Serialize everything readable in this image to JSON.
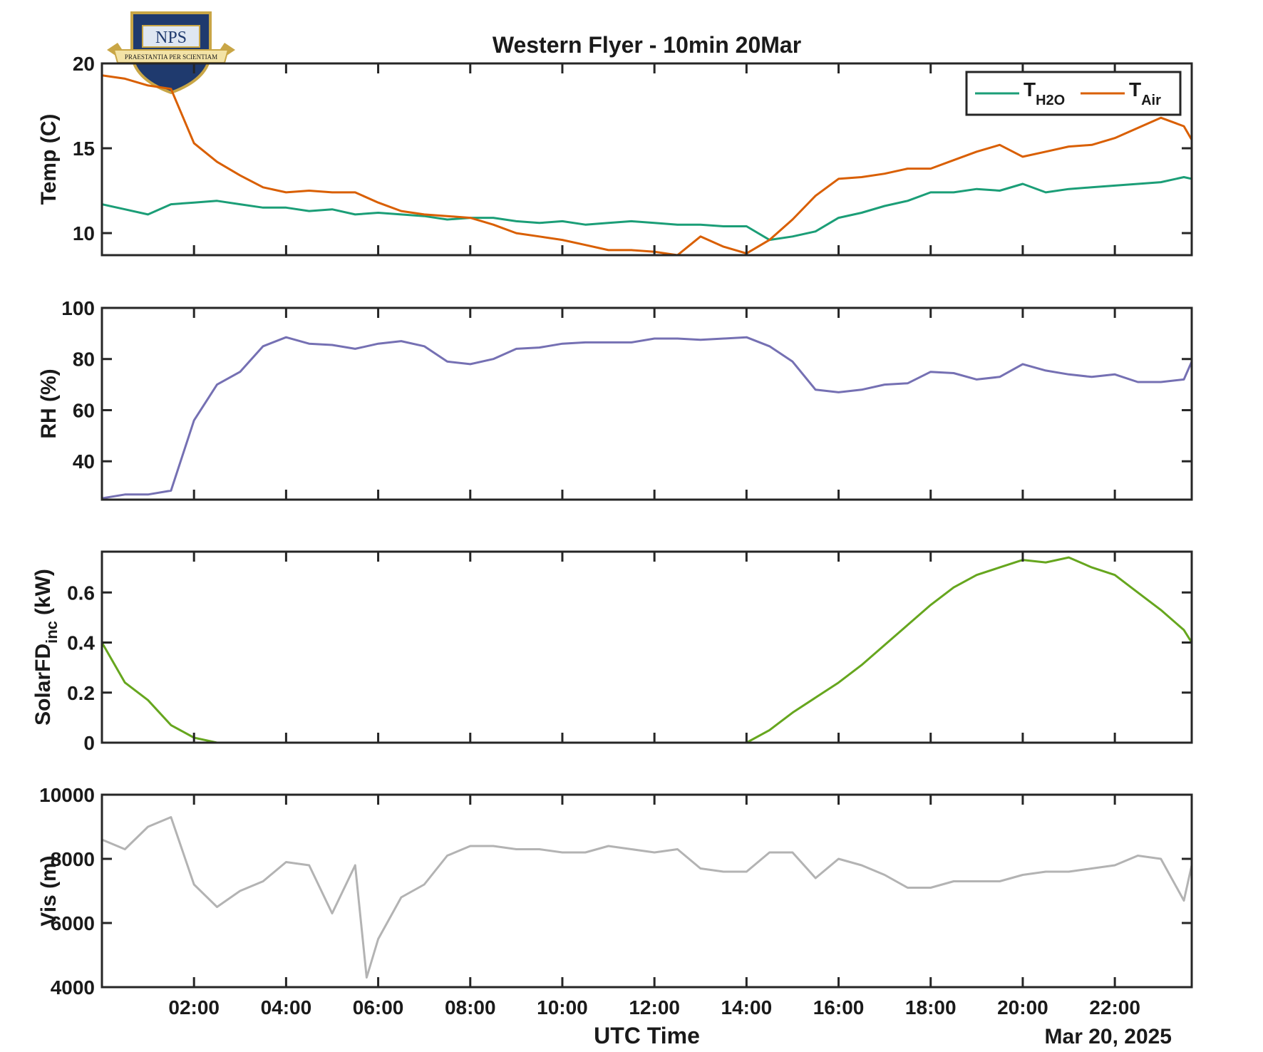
{
  "logo": {
    "text": "NPS",
    "motto": "PRAESTANTIA PER SCIENTIAM"
  },
  "chart_data": [
    {
      "type": "line",
      "title": "Western Flyer - 10min 20Mar",
      "ylabel": "Temp (C)",
      "x": [
        0,
        0.5,
        1,
        1.5,
        2,
        2.5,
        3,
        3.5,
        4,
        4.5,
        5,
        5.5,
        6,
        6.5,
        7,
        7.5,
        8,
        8.5,
        9,
        9.5,
        10,
        10.5,
        11,
        11.5,
        12,
        12.5,
        13,
        13.5,
        14,
        14.5,
        15,
        15.5,
        16,
        16.5,
        17,
        17.5,
        18,
        18.5,
        19,
        19.5,
        20,
        20.5,
        21,
        21.5,
        22,
        22.5,
        23,
        23.5,
        23.67
      ],
      "xlim": [
        0,
        23.67
      ],
      "xticks": [
        2,
        4,
        6,
        8,
        10,
        12,
        14,
        16,
        18,
        20,
        22
      ],
      "ylim": [
        8.7,
        20
      ],
      "yticks": [
        10,
        15,
        20
      ],
      "legend": "northeast",
      "series": [
        {
          "name": "T",
          "subscript": "H2O",
          "color": "#1b9e77",
          "values": [
            11.7,
            11.4,
            11.1,
            11.7,
            11.8,
            11.9,
            11.7,
            11.5,
            11.5,
            11.3,
            11.4,
            11.1,
            11.2,
            11.1,
            11.0,
            10.8,
            10.9,
            10.9,
            10.7,
            10.6,
            10.7,
            10.5,
            10.6,
            10.7,
            10.6,
            10.5,
            10.5,
            10.4,
            10.4,
            9.6,
            9.8,
            10.1,
            10.9,
            11.2,
            11.6,
            11.9,
            12.4,
            12.4,
            12.6,
            12.5,
            12.9,
            12.4,
            12.6,
            12.7,
            12.8,
            12.9,
            13.0,
            13.3,
            13.2
          ]
        },
        {
          "name": "T",
          "subscript": "Air",
          "color": "#d95f02",
          "values": [
            19.3,
            19.1,
            18.7,
            18.5,
            15.3,
            14.2,
            13.4,
            12.7,
            12.4,
            12.5,
            12.4,
            12.4,
            11.8,
            11.3,
            11.1,
            11.0,
            10.9,
            10.5,
            10.0,
            9.8,
            9.6,
            9.3,
            9.0,
            9.0,
            8.9,
            8.7,
            9.8,
            9.2,
            8.8,
            9.6,
            10.8,
            12.2,
            13.2,
            13.3,
            13.5,
            13.8,
            13.8,
            14.3,
            14.8,
            15.2,
            14.5,
            14.8,
            15.1,
            15.2,
            15.6,
            16.2,
            16.8,
            16.3,
            15.5
          ]
        }
      ]
    },
    {
      "type": "line",
      "ylabel": "RH (%)",
      "x": [
        0,
        0.5,
        1,
        1.5,
        2,
        2.5,
        3,
        3.5,
        4,
        4.5,
        5,
        5.5,
        6,
        6.5,
        7,
        7.5,
        8,
        8.5,
        9,
        9.5,
        10,
        10.5,
        11,
        11.5,
        12,
        12.5,
        13,
        13.5,
        14,
        14.5,
        15,
        15.5,
        16,
        16.5,
        17,
        17.5,
        18,
        18.5,
        19,
        19.5,
        20,
        20.5,
        21,
        21.5,
        22,
        22.5,
        23,
        23.5,
        23.67
      ],
      "xlim": [
        0,
        23.67
      ],
      "xticks": [
        2,
        4,
        6,
        8,
        10,
        12,
        14,
        16,
        18,
        20,
        22
      ],
      "ylim": [
        25,
        100
      ],
      "yticks": [
        40,
        60,
        80,
        100
      ],
      "series": [
        {
          "color": "#7570b3",
          "values": [
            25.5,
            27,
            27,
            28.5,
            56,
            70,
            75,
            85,
            88.5,
            86,
            85.5,
            84,
            86,
            87,
            85,
            79,
            78,
            80,
            84,
            84.5,
            86,
            86.5,
            86.5,
            86.5,
            88,
            88,
            87.5,
            88,
            88.5,
            85,
            79,
            68,
            67,
            68,
            70,
            70.5,
            75,
            74.5,
            72,
            73,
            78,
            75.5,
            74,
            73,
            74,
            71,
            71,
            72,
            79
          ]
        }
      ]
    },
    {
      "type": "line",
      "ylabel": {
        "text": "SolarFD",
        "subscript": "inc",
        "suffix": "(kW)"
      },
      "x": [
        0,
        0.5,
        1,
        1.5,
        2,
        2.5,
        3,
        3.5,
        4,
        4.5,
        5,
        5.5,
        6,
        6.5,
        7,
        7.5,
        8,
        8.5,
        9,
        9.5,
        10,
        10.5,
        11,
        11.5,
        12,
        12.5,
        13,
        13.5,
        14,
        14.5,
        15,
        15.5,
        16,
        16.5,
        17,
        17.5,
        18,
        18.5,
        19,
        19.5,
        20,
        20.5,
        21,
        21.5,
        22,
        22.5,
        23,
        23.5,
        23.67
      ],
      "xlim": [
        0,
        23.67
      ],
      "xticks": [
        2,
        4,
        6,
        8,
        10,
        12,
        14,
        16,
        18,
        20,
        22
      ],
      "ylim": [
        0,
        0.763
      ],
      "yticks": [
        0,
        0.2,
        0.4,
        0.6
      ],
      "series": [
        {
          "color": "#66a61e",
          "values": [
            0.4,
            0.24,
            0.17,
            0.07,
            0.02,
            0,
            0,
            0,
            0,
            0,
            0,
            0,
            0,
            0,
            0,
            0,
            0,
            0,
            0,
            0,
            0,
            0,
            0,
            0,
            0,
            0,
            0,
            0,
            0,
            0.05,
            0.12,
            0.18,
            0.24,
            0.31,
            0.39,
            0.47,
            0.55,
            0.62,
            0.67,
            0.7,
            0.73,
            0.72,
            0.74,
            0.7,
            0.67,
            0.6,
            0.53,
            0.45,
            0.4
          ]
        }
      ]
    },
    {
      "type": "line",
      "ylabel": "Vis (m)",
      "xlabel": "UTC Time",
      "date_label": "Mar 20, 2025",
      "x": [
        0,
        0.5,
        1,
        1.5,
        2,
        2.5,
        3,
        3.5,
        4,
        4.5,
        5,
        5.5,
        5.75,
        6,
        6.5,
        7,
        7.5,
        8,
        8.5,
        9,
        9.5,
        10,
        10.5,
        11,
        11.5,
        12,
        12.5,
        13,
        13.5,
        14,
        14.5,
        15,
        15.5,
        16,
        16.5,
        17,
        17.5,
        18,
        18.5,
        19,
        19.5,
        20,
        20.5,
        21,
        21.5,
        22,
        22.5,
        23,
        23.5,
        23.67
      ],
      "xlim": [
        0,
        23.67
      ],
      "xticks": [
        {
          "value": 2,
          "label": "02:00"
        },
        {
          "value": 4,
          "label": "04:00"
        },
        {
          "value": 6,
          "label": "06:00"
        },
        {
          "value": 8,
          "label": "08:00"
        },
        {
          "value": 10,
          "label": "10:00"
        },
        {
          "value": 12,
          "label": "12:00"
        },
        {
          "value": 14,
          "label": "14:00"
        },
        {
          "value": 16,
          "label": "16:00"
        },
        {
          "value": 18,
          "label": "18:00"
        },
        {
          "value": 20,
          "label": "20:00"
        },
        {
          "value": 22,
          "label": "22:00"
        }
      ],
      "ylim": [
        4000,
        10000
      ],
      "yticks": [
        4000,
        6000,
        8000,
        10000
      ],
      "series": [
        {
          "color": "#b3b3b3",
          "values": [
            8600,
            8300,
            9000,
            9300,
            7200,
            6500,
            7000,
            7300,
            7900,
            7800,
            6300,
            7800,
            4300,
            5500,
            6800,
            7200,
            8100,
            8400,
            8400,
            8300,
            8300,
            8200,
            8200,
            8400,
            8300,
            8200,
            8300,
            7700,
            7600,
            7600,
            8200,
            8200,
            7400,
            8000,
            7800,
            7500,
            7100,
            7100,
            7300,
            7300,
            7300,
            7500,
            7600,
            7600,
            7700,
            7800,
            8100,
            8000,
            6700,
            7800
          ]
        }
      ]
    }
  ]
}
